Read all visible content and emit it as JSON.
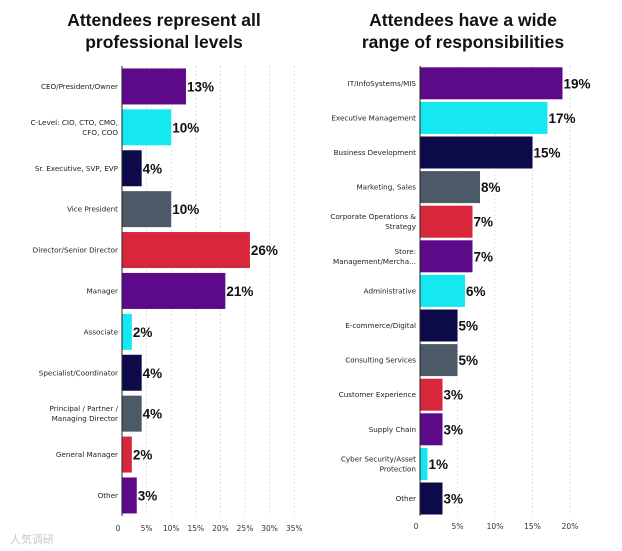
{
  "watermark": "人気调研",
  "chart_data": [
    {
      "type": "bar",
      "orientation": "horizontal",
      "title": [
        "Attendees represent all",
        "professional levels"
      ],
      "categories": [
        "CEO/President/Owner",
        "C-Level: CIO, CTO, CMO, CFO, COO",
        "Sr. Executive, SVP, EVP",
        "Vice President",
        "Director/Senior Director",
        "Manager",
        "Associate",
        "Specialist/Coordinator",
        "Principal / Partner / Managing Director",
        "General Manager",
        "Other"
      ],
      "category_lines": [
        [
          "CEO/President/Owner"
        ],
        [
          "C-Level: CIO, CTO, CMO,",
          "CFO, COO"
        ],
        [
          "Sr. Executive, SVP, EVP"
        ],
        [
          "Vice President"
        ],
        [
          "Director/Senior Director"
        ],
        [
          "Manager"
        ],
        [
          "Associate"
        ],
        [
          "Specialist/Coordinator"
        ],
        [
          "Principal / Partner /",
          "Managing Director"
        ],
        [
          "General Manager"
        ],
        [
          "Other"
        ]
      ],
      "values": [
        13,
        10,
        4,
        10,
        26,
        21,
        2,
        4,
        4,
        2,
        3
      ],
      "value_labels": [
        "13%",
        "10%",
        "4%",
        "10%",
        "26%",
        "21%",
        "2%",
        "4%",
        "4%",
        "2%",
        "3%"
      ],
      "colors": [
        "#5c0a8a",
        "#16e8f2",
        "#0d0a4a",
        "#4b5a66",
        "#d8263a",
        "#5c0a8a",
        "#16e8f2",
        "#0d0a4a",
        "#4b5a66",
        "#d8263a",
        "#5c0a8a"
      ],
      "xticks": [
        0,
        5,
        10,
        15,
        20,
        25,
        30,
        35
      ],
      "xtick_labels": [
        "0",
        "5%",
        "10%",
        "15%",
        "20%",
        "25%",
        "30%",
        "35%"
      ],
      "xlim": [
        0,
        35
      ],
      "grid": true
    },
    {
      "type": "bar",
      "orientation": "horizontal",
      "title": [
        "Attendees have a wide",
        "range of responsibilities"
      ],
      "categories": [
        "IT/InfoSystems/MIS",
        "Executive Management",
        "Business Development",
        "Marketing, Sales",
        "Corporate Operations & Strategy",
        "Store: Management/Mercha...",
        "Administrative",
        "E-commerce/Digital",
        "Consulting Services",
        "Customer Experience",
        "Supply Chain",
        "Cyber Security/Asset Protection",
        "Other"
      ],
      "category_lines": [
        [
          "IT/InfoSystems/MIS"
        ],
        [
          "Executive Management"
        ],
        [
          "Business Development"
        ],
        [
          "Marketing, Sales"
        ],
        [
          "Corporate Operations &",
          "Strategy"
        ],
        [
          "Store:",
          "Management/Mercha..."
        ],
        [
          "Administrative"
        ],
        [
          "E-commerce/Digital"
        ],
        [
          "Consulting Services"
        ],
        [
          "Customer Experience"
        ],
        [
          "Supply Chain"
        ],
        [
          "Cyber Security/Asset",
          "Protection"
        ],
        [
          "Other"
        ]
      ],
      "values": [
        19,
        17,
        15,
        8,
        7,
        7,
        6,
        5,
        5,
        3,
        3,
        1,
        3
      ],
      "value_labels": [
        "19%",
        "17%",
        "15%",
        "8%",
        "7%",
        "7%",
        "6%",
        "5%",
        "5%",
        "3%",
        "3%",
        "1%",
        "3%"
      ],
      "colors": [
        "#5c0a8a",
        "#16e8f2",
        "#0d0a4a",
        "#4b5a66",
        "#d8263a",
        "#5c0a8a",
        "#16e8f2",
        "#0d0a4a",
        "#4b5a66",
        "#d8263a",
        "#5c0a8a",
        "#16e8f2",
        "#0d0a4a"
      ],
      "xticks": [
        0,
        5,
        10,
        15,
        20
      ],
      "xtick_labels": [
        "0",
        "5%",
        "10%",
        "15%",
        "20%"
      ],
      "xlim": [
        0,
        20
      ],
      "grid": true
    }
  ]
}
